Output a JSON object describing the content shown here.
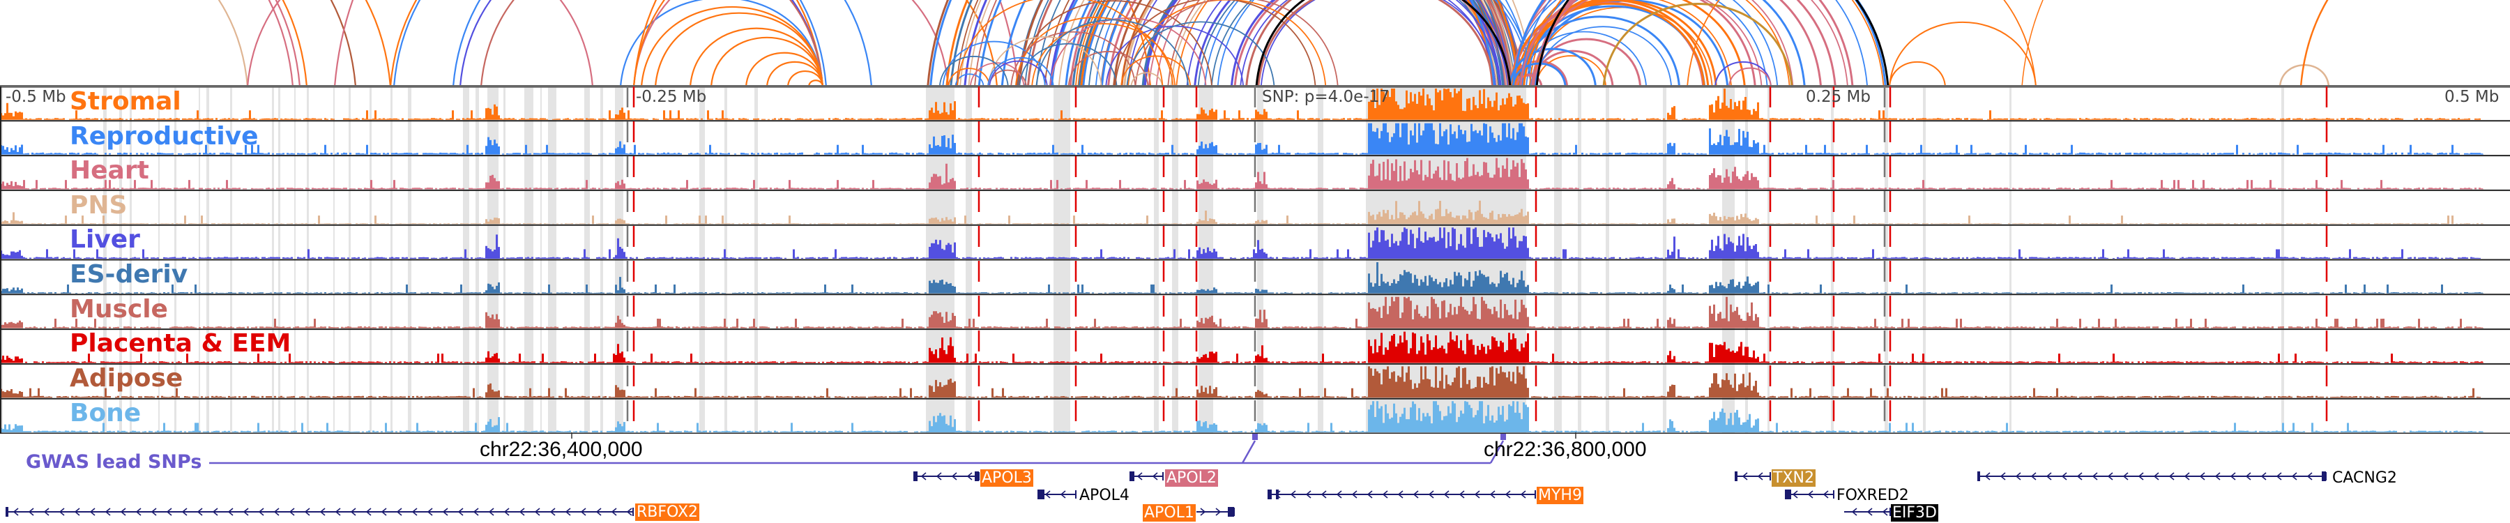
{
  "colors": {
    "accent_red_line": "#e00000",
    "grey_band": "#e4e4e4",
    "gwas": "#6a5acd",
    "gene_model": "#1a1a6e"
  },
  "scale": {
    "left": "-0.5 Mb",
    "left_mid": "-0.25 Mb",
    "center": "SNP: p=4.0e-17",
    "right_mid": "0.25 Mb",
    "right": "0.5 Mb"
  },
  "tracks": [
    {
      "label": "Stromal",
      "color": "#ff7410"
    },
    {
      "label": "Reproductive",
      "color": "#3a86f5"
    },
    {
      "label": "Heart",
      "color": "#d66e80"
    },
    {
      "label": "PNS",
      "color": "#dfb593"
    },
    {
      "label": "Liver",
      "color": "#5350e0"
    },
    {
      "label": "ES-deriv",
      "color": "#3f78b0"
    },
    {
      "label": "Muscle",
      "color": "#c66760"
    },
    {
      "label": "Placenta & EEM",
      "color": "#e00000"
    },
    {
      "label": "Adipose",
      "color": "#b25a3a"
    },
    {
      "label": "Bone",
      "color": "#6cb6ea"
    }
  ],
  "gwas": {
    "label": "GWAS lead SNPs"
  },
  "coordinates": [
    {
      "label": "chr22:36,400,000"
    },
    {
      "label": "chr22:36,800,000"
    }
  ],
  "genes": [
    {
      "name": "RBFOX2",
      "highlight": "#ff7410",
      "text_color": "#ffffff",
      "strand": "-"
    },
    {
      "name": "APOL3",
      "highlight": "#ff7410",
      "text_color": "#ffffff",
      "strand": "-"
    },
    {
      "name": "APOL4",
      "highlight": "",
      "text_color": "#000000",
      "strand": "-"
    },
    {
      "name": "APOL2",
      "highlight": "#d66e80",
      "text_color": "#ffffff",
      "strand": "-"
    },
    {
      "name": "APOL1",
      "highlight": "#ff7410",
      "text_color": "#ffffff",
      "strand": "+"
    },
    {
      "name": "MYH9",
      "highlight": "#ff7410",
      "text_color": "#ffffff",
      "strand": "-"
    },
    {
      "name": "TXN2",
      "highlight": "#c8902f",
      "text_color": "#ffffff",
      "strand": "-"
    },
    {
      "name": "FOXRED2",
      "highlight": "",
      "text_color": "#000000",
      "strand": "-"
    },
    {
      "name": "EIF3D",
      "highlight": "#000000",
      "text_color": "#ffffff",
      "strand": "-"
    },
    {
      "name": "CACNG2",
      "highlight": "",
      "text_color": "#000000",
      "strand": "-"
    }
  ]
}
